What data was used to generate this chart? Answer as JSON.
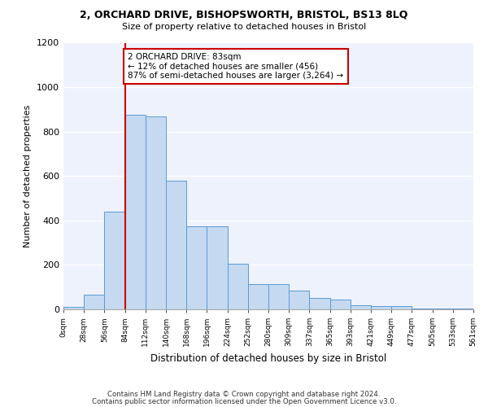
{
  "title_line1": "2, ORCHARD DRIVE, BISHOPSWORTH, BRISTOL, BS13 8LQ",
  "title_line2": "Size of property relative to detached houses in Bristol",
  "xlabel": "Distribution of detached houses by size in Bristol",
  "ylabel": "Number of detached properties",
  "bar_values": [
    12,
    65,
    440,
    875,
    870,
    580,
    375,
    375,
    205,
    115,
    115,
    85,
    50,
    45,
    20,
    15,
    15,
    5,
    5,
    5
  ],
  "bar_labels": [
    "0sqm",
    "28sqm",
    "56sqm",
    "84sqm",
    "112sqm",
    "140sqm",
    "168sqm",
    "196sqm",
    "224sqm",
    "252sqm",
    "280sqm",
    "309sqm",
    "337sqm",
    "365sqm",
    "393sqm",
    "421sqm",
    "449sqm",
    "477sqm",
    "505sqm",
    "533sqm",
    "561sqm"
  ],
  "bar_color": "#c5d9f0",
  "bar_edge_color": "#5b9bd5",
  "annotation_text": "2 ORCHARD DRIVE: 83sqm\n← 12% of detached houses are smaller (456)\n87% of semi-detached houses are larger (3,264) →",
  "annotation_box_color": "#ffffff",
  "annotation_box_edge_color": "#cc0000",
  "vline_color": "#cc0000",
  "ylim": [
    0,
    1200
  ],
  "yticks": [
    0,
    200,
    400,
    600,
    800,
    1000,
    1200
  ],
  "background_color": "#eef2fc",
  "grid_color": "#ffffff",
  "footer_line1": "Contains HM Land Registry data © Crown copyright and database right 2024.",
  "footer_line2": "Contains public sector information licensed under the Open Government Licence v3.0."
}
